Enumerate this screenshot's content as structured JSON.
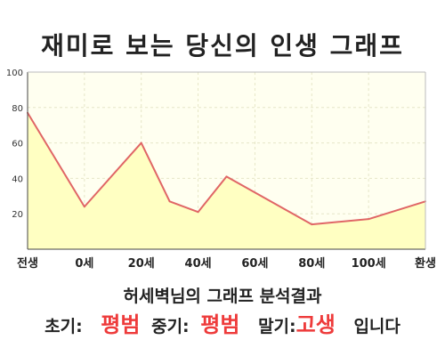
{
  "chart_data": {
    "type": "area",
    "title": "재미로 보는 당신의 인생 그래프",
    "x_labels": [
      "전생",
      "0세",
      "20세",
      "40세",
      "60세",
      "80세",
      "100세",
      "환생"
    ],
    "points": [
      {
        "x": "전생",
        "y": 77
      },
      {
        "x": "0세",
        "y": 24
      },
      {
        "x": "20세",
        "y": 60
      },
      {
        "x": "30세",
        "y": 27
      },
      {
        "x": "40세",
        "y": 21
      },
      {
        "x": "50세",
        "y": 41
      },
      {
        "x": "80세",
        "y": 14
      },
      {
        "x": "100세",
        "y": 17
      },
      {
        "x": "환생",
        "y": 27
      }
    ],
    "yticks": [
      20,
      40,
      60,
      80,
      100
    ],
    "ylim": [
      0,
      100
    ],
    "grid": true,
    "colors": {
      "line": "#e06666",
      "fill": "#ffffc2",
      "plot_bg": "#fffff0",
      "grid": "#e6e6c8"
    }
  },
  "summary": {
    "line1": "허세벽님의 그래프 분석결과",
    "early_label": "초기:",
    "early_value": "평범",
    "middle_label": "중기:",
    "middle_value": "평범",
    "late_label": "말기:",
    "late_value": "고생",
    "ending": "입니다"
  }
}
